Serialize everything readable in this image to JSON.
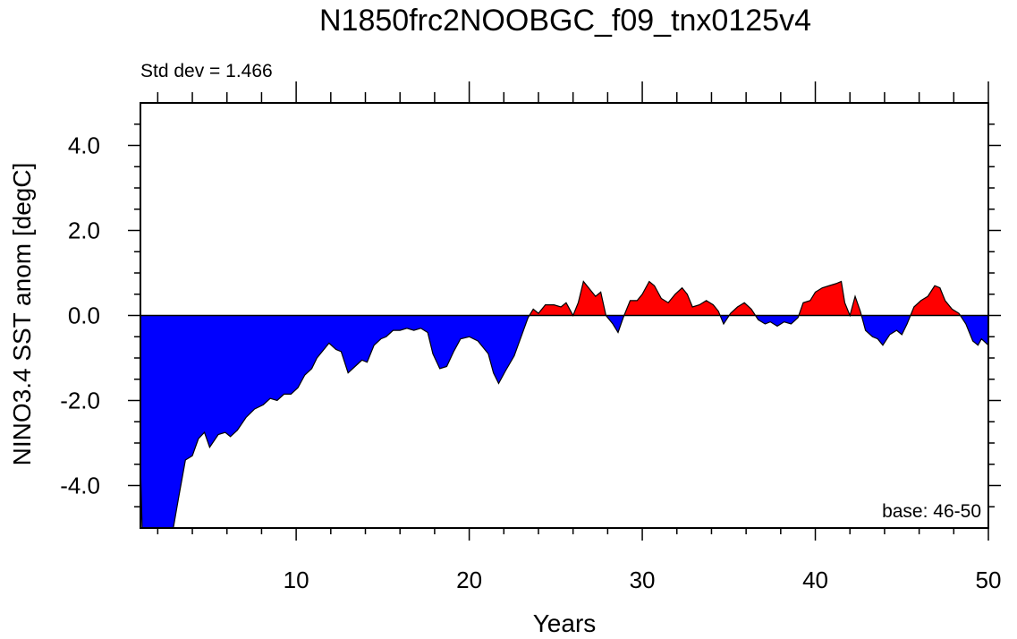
{
  "chart_data": {
    "type": "area",
    "title": "N1850frc2NOOBGC_f09_tnx0125v4",
    "subtitle": "Std dev = 1.466",
    "annotation": "base: 46-50",
    "xlabel": "Years",
    "ylabel": "NINO3.4 SST anom [degC]",
    "xlim": [
      1,
      50
    ],
    "ylim": [
      -5,
      5
    ],
    "xticks": [
      10,
      20,
      30,
      40,
      50
    ],
    "xminorticks": [
      2,
      4,
      6,
      8,
      12,
      14,
      16,
      18,
      22,
      24,
      26,
      28,
      32,
      34,
      36,
      38,
      42,
      44,
      46,
      48
    ],
    "yticks": [
      {
        "value": -4,
        "label": "-4.0"
      },
      {
        "value": -2,
        "label": "-2.0"
      },
      {
        "value": 0,
        "label": "0.0"
      },
      {
        "value": 2,
        "label": "2.0"
      },
      {
        "value": 4,
        "label": "4.0"
      }
    ],
    "yminorticks": [
      -4.5,
      -3.5,
      -3,
      -2.5,
      -1.5,
      -1,
      -0.5,
      0.5,
      1,
      1.5,
      2.5,
      3,
      3.5,
      4.5
    ],
    "above_color": "#ff0000",
    "below_color": "#0000ff",
    "x": [
      1.0,
      1.15,
      2.5,
      2.9,
      3.2,
      3.6,
      4.0,
      4.35,
      4.7,
      5.0,
      5.5,
      5.9,
      6.2,
      6.6,
      7.1,
      7.6,
      8.1,
      8.5,
      8.9,
      9.3,
      9.7,
      10.1,
      10.5,
      10.9,
      11.2,
      11.6,
      11.9,
      12.3,
      12.6,
      13.0,
      13.4,
      13.8,
      14.1,
      14.5,
      14.9,
      15.2,
      15.6,
      16.0,
      16.4,
      16.8,
      17.2,
      17.6,
      17.9,
      18.3,
      18.7,
      19.1,
      19.5,
      20.0,
      20.5,
      21.1,
      21.4,
      21.7,
      22.1,
      22.6,
      23.0,
      23.4,
      23.7,
      24.0,
      24.4,
      24.9,
      25.3,
      25.6,
      26.0,
      26.3,
      26.6,
      27.0,
      27.3,
      27.6,
      27.9,
      28.3,
      28.6,
      28.9,
      29.3,
      29.7,
      30.0,
      30.4,
      30.7,
      31.1,
      31.5,
      31.9,
      32.3,
      32.6,
      32.9,
      33.3,
      33.7,
      34.1,
      34.4,
      34.7,
      35.1,
      35.5,
      35.9,
      36.3,
      36.7,
      37.1,
      37.4,
      37.8,
      38.2,
      38.6,
      39.0,
      39.3,
      39.7,
      40.0,
      40.4,
      40.8,
      41.2,
      41.5,
      41.7,
      42.0,
      42.3,
      42.6,
      42.9,
      43.3,
      43.6,
      43.9,
      44.3,
      44.7,
      45.0,
      45.3,
      45.7,
      46.1,
      46.5,
      46.9,
      47.2,
      47.5,
      47.9,
      48.3,
      48.7,
      49.1,
      49.4,
      49.6,
      50.0
    ],
    "values": [
      -3.5,
      -5.8,
      -5.8,
      -5.0,
      -4.3,
      -3.4,
      -3.3,
      -2.9,
      -2.75,
      -3.1,
      -2.8,
      -2.75,
      -2.85,
      -2.7,
      -2.4,
      -2.2,
      -2.1,
      -1.95,
      -2.0,
      -1.85,
      -1.85,
      -1.7,
      -1.4,
      -1.25,
      -1.0,
      -0.8,
      -0.65,
      -0.8,
      -0.85,
      -1.35,
      -1.2,
      -1.05,
      -1.1,
      -0.7,
      -0.55,
      -0.5,
      -0.35,
      -0.35,
      -0.3,
      -0.35,
      -0.3,
      -0.4,
      -0.9,
      -1.25,
      -1.2,
      -0.85,
      -0.55,
      -0.5,
      -0.6,
      -0.9,
      -1.35,
      -1.6,
      -1.3,
      -0.95,
      -0.5,
      -0.05,
      0.15,
      0.05,
      0.25,
      0.25,
      0.2,
      0.3,
      0.0,
      0.3,
      0.8,
      0.6,
      0.45,
      0.55,
      0.0,
      -0.2,
      -0.4,
      -0.05,
      0.35,
      0.35,
      0.5,
      0.8,
      0.7,
      0.4,
      0.3,
      0.5,
      0.65,
      0.5,
      0.2,
      0.25,
      0.35,
      0.25,
      0.1,
      -0.2,
      0.05,
      0.2,
      0.3,
      0.15,
      -0.1,
      -0.2,
      -0.15,
      -0.25,
      -0.15,
      -0.2,
      -0.05,
      0.3,
      0.35,
      0.55,
      0.65,
      0.7,
      0.75,
      0.8,
      0.3,
      0.0,
      0.45,
      0.1,
      -0.35,
      -0.5,
      -0.55,
      -0.7,
      -0.45,
      -0.35,
      -0.45,
      -0.2,
      0.2,
      0.35,
      0.45,
      0.7,
      0.65,
      0.35,
      0.15,
      0.05,
      -0.2,
      -0.6,
      -0.7,
      -0.55,
      -0.7
    ]
  }
}
